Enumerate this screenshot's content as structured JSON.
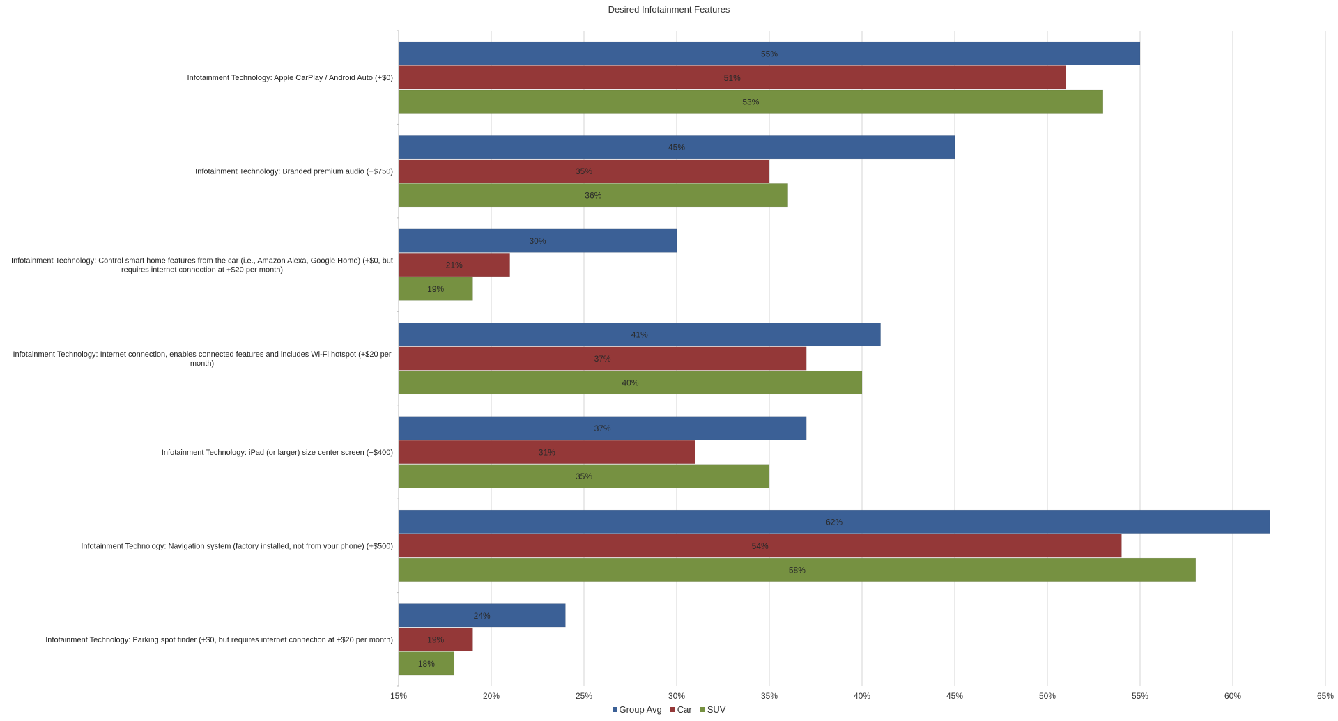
{
  "chart_data": {
    "type": "bar",
    "orientation": "horizontal",
    "title": "Desired Infotainment Features",
    "xlabel": "",
    "ylabel": "",
    "xlim": [
      15,
      65
    ],
    "x_ticks": [
      "15%",
      "20%",
      "25%",
      "30%",
      "35%",
      "40%",
      "45%",
      "50%",
      "55%",
      "60%",
      "65%"
    ],
    "x_tick_values": [
      15,
      20,
      25,
      30,
      35,
      40,
      45,
      50,
      55,
      60,
      65
    ],
    "grid": true,
    "legend_position": "bottom",
    "categories": [
      [
        "Infotainment Technology: Apple CarPlay / Android Auto (+$0)"
      ],
      [
        "Infotainment Technology: Branded premium audio (+$750)"
      ],
      [
        "Infotainment Technology: Control smart home features from the car (i.e., Amazon Alexa, Google Home) (+$0, but",
        "requires internet connection at +$20 per month)"
      ],
      [
        "Infotainment Technology: Internet connection, enables connected features and includes Wi-Fi hotspot (+$20 per",
        "month)"
      ],
      [
        "Infotainment Technology: iPad (or larger) size center screen (+$400)"
      ],
      [
        "Infotainment Technology: Navigation system (factory installed, not from your phone) (+$500)"
      ],
      [
        "Infotainment Technology: Parking spot finder (+$0, but requires internet connection at +$20 per month)"
      ]
    ],
    "series": [
      {
        "name": "Group Avg",
        "color": "#3b6096",
        "values": [
          55,
          45,
          30,
          41,
          37,
          62,
          24
        ]
      },
      {
        "name": "Car",
        "color": "#943838",
        "values": [
          51,
          35,
          21,
          37,
          31,
          54,
          19
        ]
      },
      {
        "name": "SUV",
        "color": "#769141",
        "values": [
          53,
          36,
          19,
          40,
          35,
          58,
          18
        ]
      }
    ],
    "value_suffix": "%"
  }
}
